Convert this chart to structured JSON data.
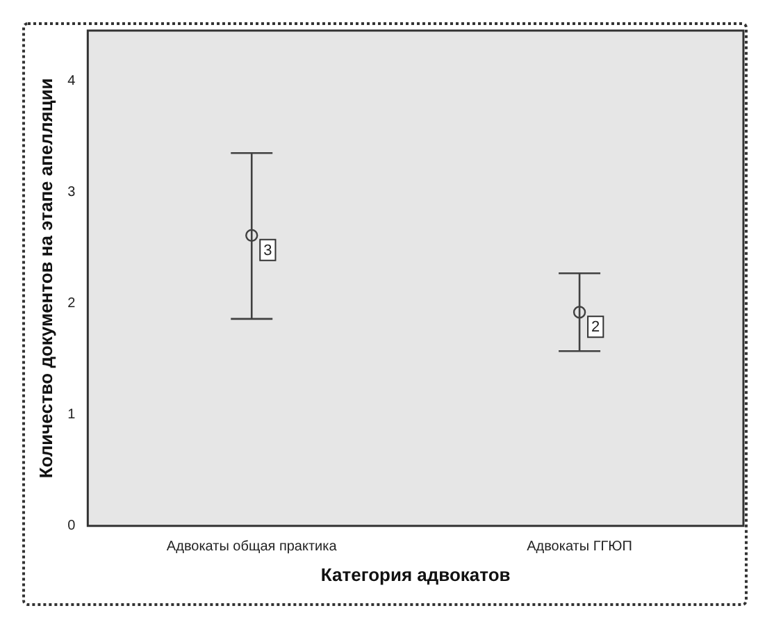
{
  "chart_data": {
    "type": "scatter",
    "xlabel": "Категория адвокатов",
    "ylabel": "Количество документов на этапе апелляции",
    "categories": [
      "Адвокаты общая практика",
      "Адвокаты ГГЮП"
    ],
    "series": [
      {
        "color": "#404040",
        "values": [
          2.61,
          1.92
        ],
        "errors": [
          [
            1.86,
            3.35
          ],
          [
            1.57,
            2.27
          ]
        ]
      }
    ],
    "ylim": [
      0,
      4.45
    ],
    "yticks": [
      0,
      1,
      2,
      3,
      4
    ],
    "grid": false,
    "legend": false,
    "marker": "circle",
    "annotations": [
      {
        "text": "3",
        "x": "Адвокаты общая практика",
        "y": 2.61
      },
      {
        "text": "2",
        "x": "Адвокаты ГГЮП",
        "y": 1.92
      }
    ]
  }
}
